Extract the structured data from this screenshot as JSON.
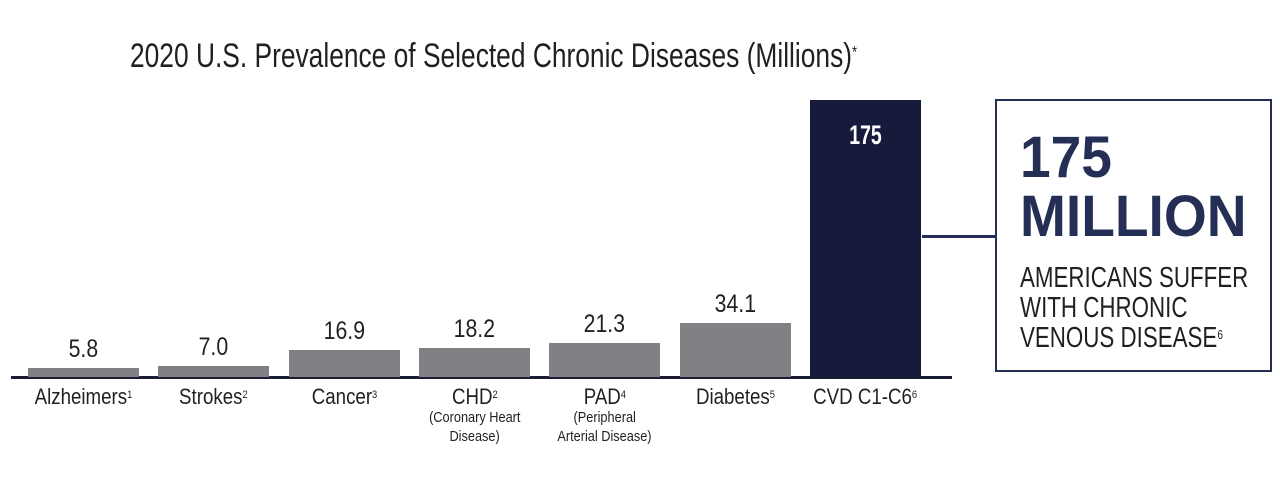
{
  "title": {
    "text": "2020 U.S. Prevalence of Selected Chronic Diseases (Millions)",
    "superscript": "*"
  },
  "chart_data": {
    "type": "bar",
    "title": "2020 U.S. Prevalence of Selected Chronic Diseases (Millions)*",
    "categories": [
      "Alzheimers",
      "Strokes",
      "Cancer",
      "CHD",
      "PAD",
      "Diabetes",
      "CVD C1-C6"
    ],
    "category_superscripts": [
      "1",
      "2",
      "3",
      "2",
      "4",
      "5",
      "6"
    ],
    "category_sublabels": [
      [],
      [],
      [],
      [
        "(Coronary Heart",
        "Disease)"
      ],
      [
        "(Peripheral",
        "Arterial Disease)"
      ],
      [],
      []
    ],
    "values": [
      5.8,
      7.0,
      16.9,
      18.2,
      21.3,
      34.1,
      175
    ],
    "value_labels": [
      "5.8",
      "7.0",
      "16.9",
      "18.2",
      "21.3",
      "34.1",
      "175"
    ],
    "ylabel": "",
    "xlabel": "",
    "legend": false,
    "grid": false,
    "bar_color_default": "#808184",
    "bar_color_highlight": "#161b3c",
    "highlight_index": 6
  },
  "callout": {
    "headline_line1": "175",
    "headline_line2": "MILLION",
    "body_lines": [
      "AMERICANS SUFFER",
      "WITH CHRONIC",
      "VENOUS DISEASE"
    ],
    "body_superscript": "6"
  },
  "colors": {
    "bar_gray": "#808184",
    "bar_navy": "#161b3c",
    "accent_navy": "#252e55",
    "text_dark": "#231f20",
    "background": "#ffffff",
    "in_bar_label": "#ffffff"
  }
}
